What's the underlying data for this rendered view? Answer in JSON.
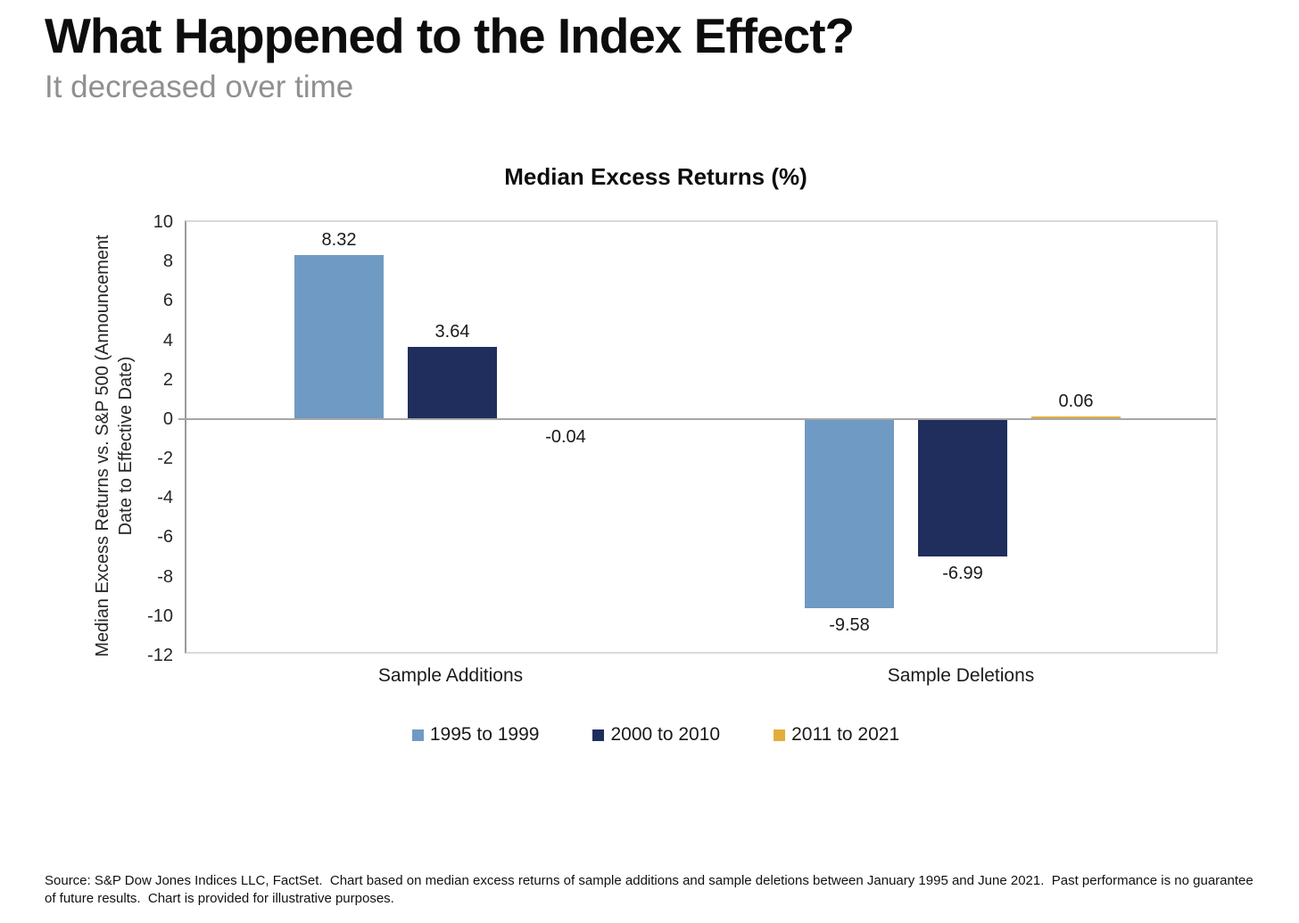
{
  "page": {
    "title": "What Happened to the Index Effect?",
    "subtitle": "It decreased over time",
    "source_note": "Source: S&P Dow Jones Indices LLC, FactSet.  Chart based on median excess returns of sample additions and sample deletions between January 1995 and June 2021.  Past performance is no guarantee of future results.  Chart is provided for illustrative purposes."
  },
  "chart_data": {
    "type": "bar",
    "title": "Median Excess Returns (%)",
    "ylabel_lines": [
      "Median Excess Returns vs. S&P 500 (Announcement",
      "Date to Effective Date)"
    ],
    "categories": [
      "Sample Additions",
      "Sample Deletions"
    ],
    "series": [
      {
        "name": "1995 to 1999",
        "color": "#6f9ac3",
        "values": [
          8.32,
          -9.58
        ],
        "labels": [
          "8.32",
          "-9.58"
        ]
      },
      {
        "name": "2000 to 2010",
        "color": "#1f2e5c",
        "values": [
          3.64,
          -6.99
        ],
        "labels": [
          "3.64",
          "-6.99"
        ]
      },
      {
        "name": "2011 to 2021",
        "color": "#e3ad3b",
        "values": [
          -0.04,
          0.06
        ],
        "labels": [
          "-0.04",
          "0.06"
        ]
      }
    ],
    "ylim": [
      -12,
      10
    ],
    "yticks": [
      10,
      8,
      6,
      4,
      2,
      0,
      -2,
      -4,
      -6,
      -8,
      -10,
      -12
    ],
    "grid": false,
    "legend_position": "bottom",
    "axis_colors": {
      "zero_line": "#a6a6a6",
      "plot_border": "#d9d9d9",
      "axis_line": "#9a9a9a"
    }
  }
}
